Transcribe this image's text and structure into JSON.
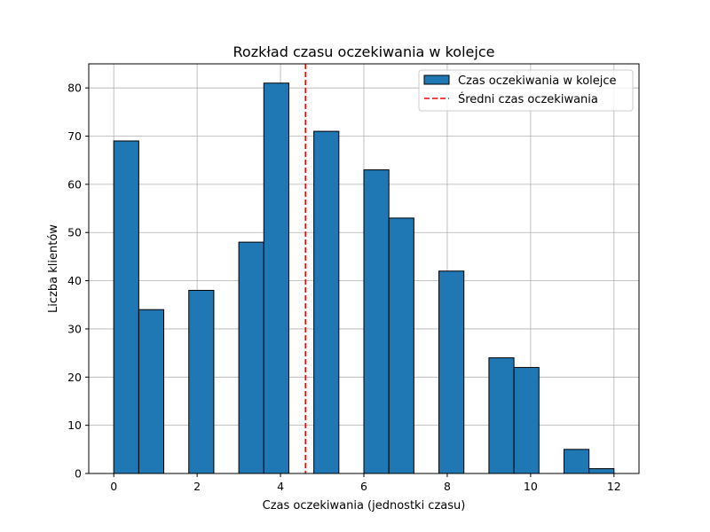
{
  "chart_data": {
    "type": "bar",
    "title": "Rozkład czasu oczekiwania w kolejce",
    "xlabel": "Czas oczekiwania (jednostki czasu)",
    "ylabel": "Liczba klientów",
    "xlim": [
      -0.6,
      12.6
    ],
    "ylim": [
      0,
      85
    ],
    "xticks": [
      0,
      2,
      4,
      6,
      8,
      10,
      12
    ],
    "yticks": [
      0,
      10,
      20,
      30,
      40,
      50,
      60,
      70,
      80
    ],
    "grid": true,
    "legend_position": "top-right",
    "bin_width": 0.6,
    "bins": [
      {
        "x": 0.0,
        "count": 69
      },
      {
        "x": 0.6,
        "count": 34
      },
      {
        "x": 1.8,
        "count": 38
      },
      {
        "x": 3.0,
        "count": 48
      },
      {
        "x": 3.6,
        "count": 81
      },
      {
        "x": 4.8,
        "count": 71
      },
      {
        "x": 6.0,
        "count": 63
      },
      {
        "x": 6.6,
        "count": 53
      },
      {
        "x": 7.8,
        "count": 42
      },
      {
        "x": 9.0,
        "count": 24
      },
      {
        "x": 9.6,
        "count": 22
      },
      {
        "x": 10.8,
        "count": 5
      },
      {
        "x": 11.4,
        "count": 1
      }
    ],
    "mean_line": 4.6,
    "series": [
      {
        "name": "Czas oczekiwania w kolejce",
        "kind": "bars",
        "color": "#1f77b4"
      },
      {
        "name": "Średni czas oczekiwania",
        "kind": "line",
        "color": "#ff0000"
      }
    ]
  }
}
